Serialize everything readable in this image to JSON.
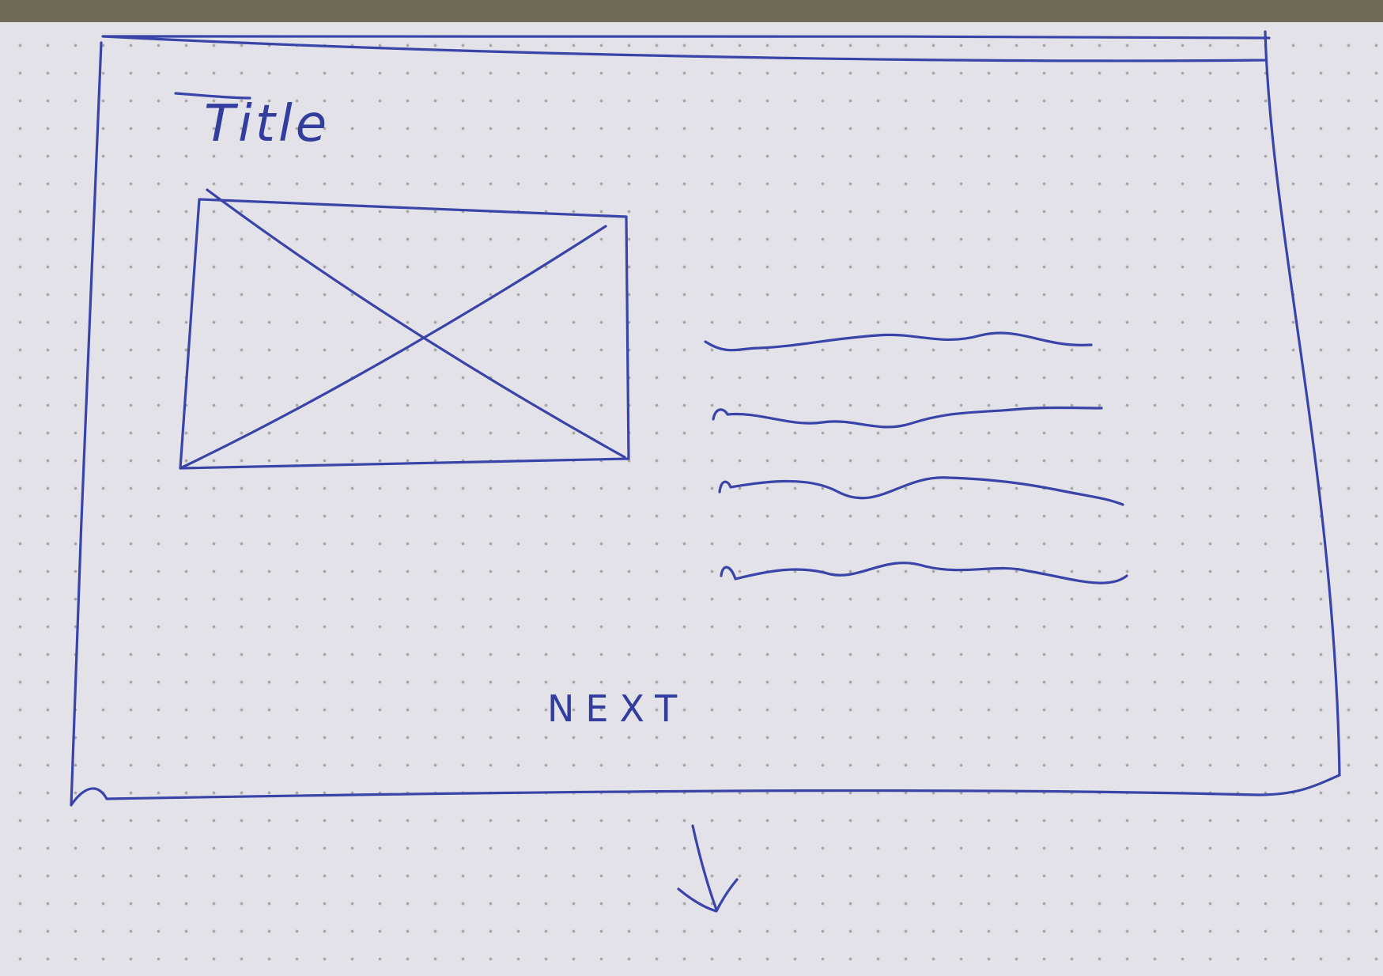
{
  "sketch": {
    "title": "Title",
    "image_placeholder": "crossed-box",
    "text_lines_count": 4,
    "next_label": "NEXT",
    "scroll_arrow": "arrow-down"
  },
  "colors": {
    "ink": "#3a44a8",
    "paper": "#e2e2e8",
    "background": "#6e6a56"
  }
}
